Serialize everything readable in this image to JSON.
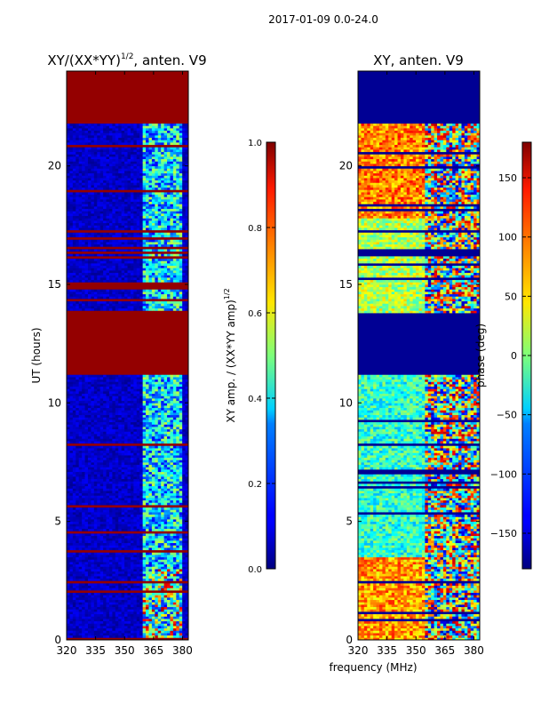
{
  "figure": {
    "suptitle": "2017-01-09 0.0-24.0",
    "shared_xlabel": "frequency (MHz)"
  },
  "chart_data": [
    {
      "type": "heatmap",
      "title_main": "XY/(XX*YY)",
      "title_sup": "1/2",
      "title_suffix": ", anten. V9",
      "ylabel": "UT (hours)",
      "xlim": [
        320,
        383
      ],
      "ylim": [
        0,
        24
      ],
      "xticks": [
        320,
        335,
        350,
        365,
        380
      ],
      "yticks": [
        0,
        5,
        10,
        15,
        20
      ],
      "colorbar": {
        "label_main": "XY amp. / (XX*YY amp)",
        "label_sup": "1/2",
        "range": [
          0.0,
          1.0
        ],
        "ticks": [
          "0.0",
          "0.2",
          "0.4",
          "0.6",
          "0.8",
          "1.0"
        ],
        "colormap": "jet"
      },
      "saturated_time_ranges_hours": [
        [
          0.0,
          0.1
        ],
        [
          11.2,
          13.8
        ],
        [
          14.8,
          15.1
        ],
        [
          21.8,
          24.0
        ]
      ],
      "active_freq_range_mhz": [
        359,
        380
      ]
    },
    {
      "type": "heatmap",
      "title": "XY, anten. V9",
      "ylabel": "phase (deg)",
      "xlim": [
        320,
        383
      ],
      "ylim": [
        0,
        24
      ],
      "xticks": [
        320,
        335,
        350,
        365,
        380
      ],
      "yticks": [
        0,
        5,
        10,
        15,
        20
      ],
      "colorbar": {
        "label": "phase (deg)",
        "range": [
          -180,
          180
        ],
        "ticks": [
          "−150",
          "−100",
          "−50",
          "0",
          "50",
          "100",
          "150"
        ],
        "colormap": "jet"
      },
      "empty_time_ranges_hours": [
        [
          11.2,
          13.8
        ],
        [
          21.8,
          24.0
        ]
      ]
    }
  ]
}
